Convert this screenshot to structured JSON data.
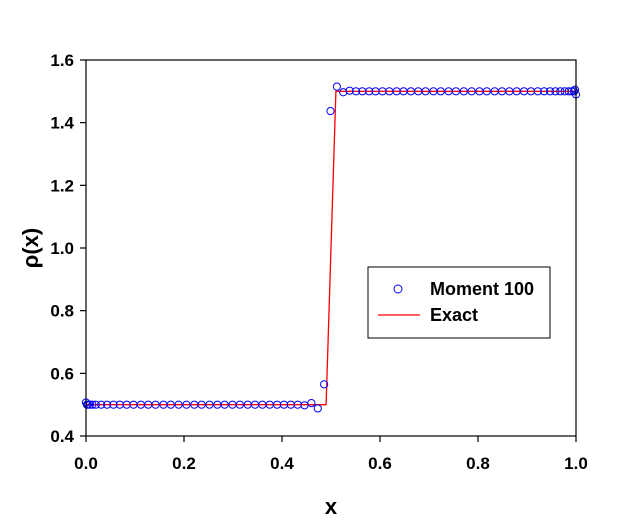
{
  "chart_data": {
    "type": "line",
    "title": "",
    "xlabel": "x",
    "ylabel": "ρ(x)",
    "xlim": [
      0.0,
      1.0
    ],
    "ylim": [
      0.4,
      1.6
    ],
    "xticks": [
      "0.0",
      "0.2",
      "0.4",
      "0.6",
      "0.8",
      "1.0"
    ],
    "yticks": [
      "0.4",
      "0.6",
      "0.8",
      "1.0",
      "1.2",
      "1.4",
      "1.6"
    ],
    "grid": false,
    "legend_position": "center-right",
    "series": [
      {
        "name": "Moment 100",
        "style": "markers",
        "marker": "open-circle",
        "color": "#0000ff",
        "x": [
          0.0,
          0.002,
          0.004,
          0.008,
          0.013,
          0.02,
          0.031,
          0.043,
          0.056,
          0.069,
          0.083,
          0.097,
          0.112,
          0.127,
          0.142,
          0.158,
          0.173,
          0.189,
          0.205,
          0.221,
          0.236,
          0.252,
          0.268,
          0.283,
          0.299,
          0.314,
          0.33,
          0.345,
          0.36,
          0.375,
          0.39,
          0.404,
          0.418,
          0.432,
          0.446,
          0.46,
          0.473,
          0.486,
          0.499,
          0.512,
          0.525,
          0.538,
          0.551,
          0.564,
          0.578,
          0.591,
          0.605,
          0.619,
          0.634,
          0.648,
          0.663,
          0.678,
          0.693,
          0.709,
          0.724,
          0.74,
          0.755,
          0.771,
          0.787,
          0.803,
          0.818,
          0.834,
          0.849,
          0.864,
          0.879,
          0.894,
          0.908,
          0.922,
          0.935,
          0.947,
          0.958,
          0.968,
          0.977,
          0.985,
          0.991,
          0.996,
          0.998,
          1.0
        ],
        "y": [
          0.507,
          0.5,
          0.5,
          0.5,
          0.5,
          0.5,
          0.5,
          0.5,
          0.5,
          0.5,
          0.5,
          0.5,
          0.5,
          0.5,
          0.5,
          0.5,
          0.5,
          0.5,
          0.5,
          0.5,
          0.5,
          0.5,
          0.5,
          0.5,
          0.5,
          0.5,
          0.5,
          0.5,
          0.5,
          0.5,
          0.5,
          0.5,
          0.5,
          0.5,
          0.498,
          0.505,
          0.488,
          0.565,
          1.437,
          1.515,
          1.497,
          1.502,
          1.5,
          1.5,
          1.5,
          1.5,
          1.5,
          1.5,
          1.5,
          1.5,
          1.5,
          1.5,
          1.5,
          1.5,
          1.5,
          1.5,
          1.5,
          1.5,
          1.5,
          1.5,
          1.5,
          1.5,
          1.5,
          1.5,
          1.5,
          1.5,
          1.5,
          1.5,
          1.5,
          1.5,
          1.5,
          1.5,
          1.5,
          1.5,
          1.5,
          1.5,
          1.505,
          1.49
        ]
      },
      {
        "name": "Exact",
        "style": "line",
        "color": "#ff0000",
        "x": [
          0.0,
          0.49,
          0.51,
          1.0
        ],
        "y": [
          0.5,
          0.5,
          1.5,
          1.5
        ]
      }
    ]
  }
}
